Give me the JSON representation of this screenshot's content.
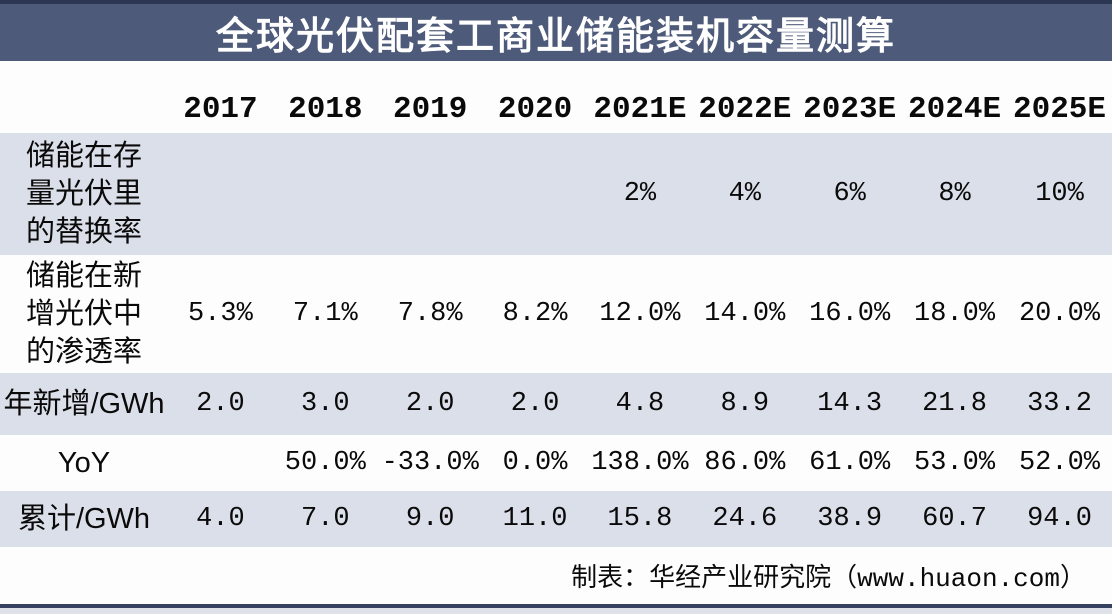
{
  "title": "全球光伏配套工商业储能装机容量测算",
  "source_note": "制表：华经产业研究院（www.huaon.com）",
  "colors": {
    "title_bar_bg": "#4d5a7a",
    "title_bar_top_edge": "#2c3853",
    "title_text": "#ffffff",
    "shaded_row_bg": "#dbdfe9",
    "body_bg": "#fdfdfe",
    "text": "#0a0a0a",
    "bottom_line": "#344161",
    "bottom_strip": "#dfe2e8"
  },
  "chart_data": {
    "type": "table",
    "title": "全球光伏配套工商业储能装机容量测算",
    "columns": [
      "2017",
      "2018",
      "2019",
      "2020",
      "2021E",
      "2022E",
      "2023E",
      "2024E",
      "2025E"
    ],
    "rows": [
      {
        "label": "储能在存\n量光伏里\n的替换率",
        "values": [
          "",
          "",
          "",
          "",
          "2%",
          "4%",
          "6%",
          "8%",
          "10%"
        ],
        "shaded": true
      },
      {
        "label": "储能在新\n增光伏中\n的渗透率",
        "values": [
          "5.3%",
          "7.1%",
          "7.8%",
          "8.2%",
          "12.0%",
          "14.0%",
          "16.0%",
          "18.0%",
          "20.0%"
        ],
        "shaded": false
      },
      {
        "label": "年新增/GWh",
        "values": [
          "2.0",
          "3.0",
          "2.0",
          "2.0",
          "4.8",
          "8.9",
          "14.3",
          "21.8",
          "33.2"
        ],
        "shaded": true
      },
      {
        "label": "YoY",
        "values": [
          "",
          "50.0%",
          "-33.0%",
          "0.0%",
          "138.0%",
          "86.0%",
          "61.0%",
          "53.0%",
          "52.0%"
        ],
        "shaded": false
      },
      {
        "label": "累计/GWh",
        "values": [
          "4.0",
          "7.0",
          "9.0",
          "11.0",
          "15.8",
          "24.6",
          "38.9",
          "60.7",
          "94.0"
        ],
        "shaded": true
      }
    ],
    "source": "制表：华经产业研究院（www.huaon.com）"
  }
}
